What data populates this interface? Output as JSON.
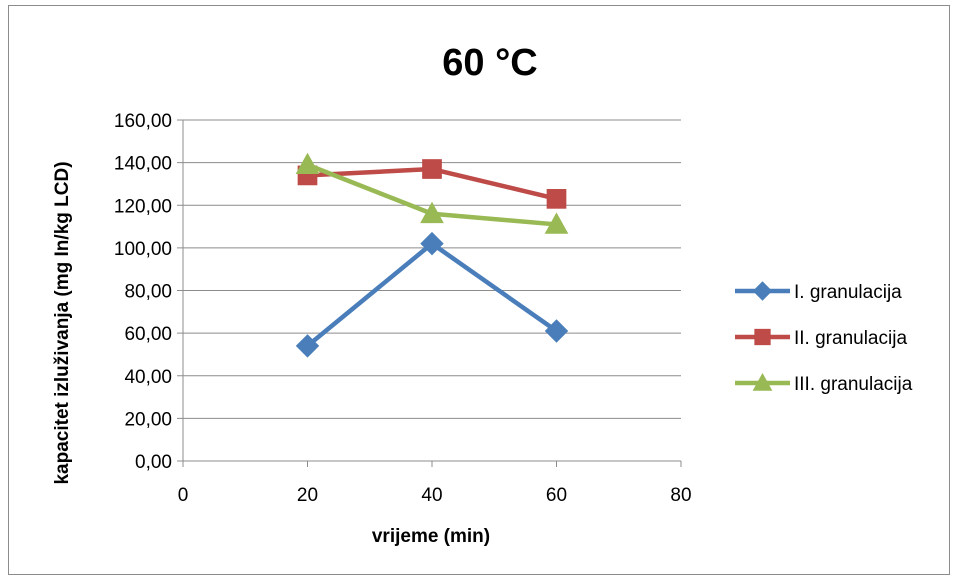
{
  "chart_data": {
    "type": "scatter",
    "title": "60 °C",
    "xlabel": "vrijeme (min)",
    "ylabel": "kapacitet izluživanja  (mg In/kg LCD)",
    "xlim": [
      0,
      80
    ],
    "ylim": [
      0,
      160
    ],
    "x_ticks": [
      "0",
      "20",
      "40",
      "60",
      "80"
    ],
    "y_ticks": [
      "0,00",
      "20,00",
      "40,00",
      "60,00",
      "80,00",
      "100,00",
      "120,00",
      "140,00",
      "160,00"
    ],
    "grid": "horizontal",
    "legend_position": "right",
    "series": [
      {
        "name": "I. granulacija",
        "color": "#4a7ebb",
        "marker": "diamond",
        "x": [
          20,
          40,
          60
        ],
        "y": [
          54,
          102,
          61
        ]
      },
      {
        "name": "II. granulacija",
        "color": "#be4b48",
        "marker": "square",
        "x": [
          20,
          40,
          60
        ],
        "y": [
          134,
          137,
          123
        ]
      },
      {
        "name": "III. granulacija",
        "color": "#98b954",
        "marker": "triangle",
        "x": [
          20,
          40,
          60
        ],
        "y": [
          139,
          116,
          111
        ]
      }
    ]
  }
}
